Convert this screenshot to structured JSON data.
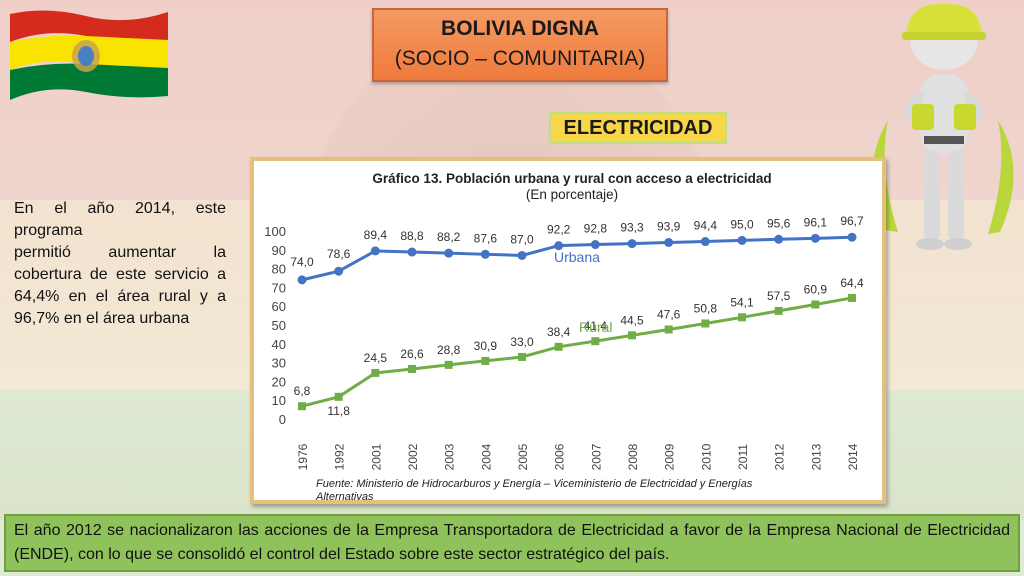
{
  "header": {
    "title_line1": "BOLIVIA DIGNA",
    "title_line2": "(SOCIO – COMUNITARIA)",
    "section_label": "ELECTRICIDAD"
  },
  "side_text": {
    "line1": "En el año 2014, este programa",
    "line2": "permitió aumentar la cobertura de este servicio a 64,4% en el área rural y a 96,7% en el área urbana"
  },
  "footer_text": "El año 2012 se nacionalizaron las acciones de la Empresa Transportadora de Electricidad a favor de la Empresa Nacional de Electricidad (ENDE), con lo que se consolidó el control del Estado sobre este sector estratégico del país.",
  "colors": {
    "urban": "#4472c4",
    "rural": "#70ad47",
    "title_box": "#ef8446",
    "section_box": "#f7d64a",
    "footer_box": "#8fc25a"
  },
  "chart_data": {
    "type": "line",
    "title": "Gráfico 13. Población urbana y rural con acceso a electricidad",
    "subtitle": "(En porcentaje)",
    "source": "Fuente: Ministerio de Hidrocarburos y Energía – Viceministerio de Electricidad y Energías Alternativas",
    "categories": [
      "1976",
      "1992",
      "2001",
      "2002",
      "2003",
      "2004",
      "2005",
      "2006",
      "2007",
      "2008",
      "2009",
      "2010",
      "2011",
      "2012",
      "2013",
      "2014"
    ],
    "ylim": [
      0,
      100
    ],
    "yticks": [
      0,
      10,
      20,
      30,
      40,
      50,
      60,
      70,
      80,
      90,
      100
    ],
    "series": [
      {
        "name": "Urbana",
        "values": [
          74.0,
          78.6,
          89.4,
          88.8,
          88.2,
          87.6,
          87.0,
          92.2,
          92.8,
          93.3,
          93.9,
          94.4,
          95.0,
          95.6,
          96.1,
          96.7
        ],
        "labels": [
          "74,0",
          "78,6",
          "89,4",
          "88,8",
          "88,2",
          "87,6",
          "87,0",
          "92,2",
          "92,8",
          "93,3",
          "93,9",
          "94,4",
          "95,0",
          "95,6",
          "96,1",
          "96,7"
        ]
      },
      {
        "name": "Rural",
        "values": [
          6.8,
          11.8,
          24.5,
          26.6,
          28.8,
          30.9,
          33.0,
          38.4,
          41.4,
          44.5,
          47.6,
          50.8,
          54.1,
          57.5,
          60.9,
          64.4
        ],
        "labels": [
          "6,8",
          "11,8",
          "24,5",
          "26,6",
          "28,8",
          "30,9",
          "33,0",
          "38,4",
          "41,4",
          "44,5",
          "47,6",
          "50,8",
          "54,1",
          "57,5",
          "60,9",
          "64,4"
        ]
      }
    ]
  }
}
